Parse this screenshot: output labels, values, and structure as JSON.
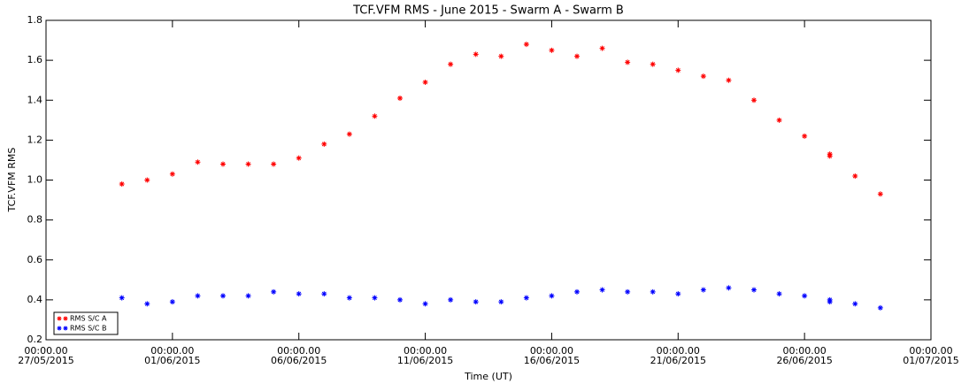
{
  "chart_data": {
    "type": "scatter",
    "title": "TCF.VFM RMS - June 2015 - Swarm A - Swarm B",
    "x_label": "Time (UT)",
    "y_label": "TCF.VFM RMS",
    "x": [
      "2015-05-30T00:00:00",
      "2015-05-31T00:00:00",
      "2015-06-01T00:00:00",
      "2015-06-02T00:00:00",
      "2015-06-03T00:00:00",
      "2015-06-04T00:00:00",
      "2015-06-05T00:00:00",
      "2015-06-06T00:00:00",
      "2015-06-07T00:00:00",
      "2015-06-08T00:00:00",
      "2015-06-09T00:00:00",
      "2015-06-10T00:00:00",
      "2015-06-11T00:00:00",
      "2015-06-12T00:00:00",
      "2015-06-13T00:00:00",
      "2015-06-14T00:00:00",
      "2015-06-15T00:00:00",
      "2015-06-16T00:00:00",
      "2015-06-17T00:00:00",
      "2015-06-18T00:00:00",
      "2015-06-19T00:00:00",
      "2015-06-20T00:00:00",
      "2015-06-21T00:00:00",
      "2015-06-22T00:00:00",
      "2015-06-23T00:00:00",
      "2015-06-24T00:00:00",
      "2015-06-25T00:00:00",
      "2015-06-26T00:00:00",
      "2015-06-27T00:00:00",
      "2015-06-27T00:00:00",
      "2015-06-28T00:00:00",
      "2015-06-29T00:00:00"
    ],
    "series": [
      {
        "name": "RMS S/C A",
        "color": "#ff0000",
        "values": [
          0.98,
          1.0,
          1.03,
          1.09,
          1.08,
          1.08,
          1.08,
          1.11,
          1.18,
          1.23,
          1.32,
          1.41,
          1.49,
          1.58,
          1.63,
          1.62,
          1.68,
          1.65,
          1.62,
          1.66,
          1.59,
          1.58,
          1.55,
          1.52,
          1.5,
          1.4,
          1.3,
          1.22,
          1.12,
          1.13,
          1.02,
          0.93
        ]
      },
      {
        "name": "RMS S/C B",
        "color": "#0000ff",
        "values": [
          0.41,
          0.38,
          0.39,
          0.42,
          0.42,
          0.42,
          0.44,
          0.43,
          0.43,
          0.41,
          0.41,
          0.4,
          0.38,
          0.4,
          0.39,
          0.39,
          0.41,
          0.42,
          0.44,
          0.45,
          0.44,
          0.44,
          0.43,
          0.45,
          0.46,
          0.45,
          0.43,
          0.42,
          0.4,
          0.39,
          0.38,
          0.36
        ]
      }
    ],
    "xlim": [
      "2015-05-27T00:00:00",
      "2015-07-01T00:00:00"
    ],
    "xticks": [
      {
        "value": "2015-05-27T00:00:00",
        "label": "00:00.00\n27/05/2015"
      },
      {
        "value": "2015-06-01T00:00:00",
        "label": "00:00.00\n01/06/2015"
      },
      {
        "value": "2015-06-06T00:00:00",
        "label": "00:00.00\n06/06/2015"
      },
      {
        "value": "2015-06-11T00:00:00",
        "label": "00:00.00\n11/06/2015"
      },
      {
        "value": "2015-06-16T00:00:00",
        "label": "00:00.00\n16/06/2015"
      },
      {
        "value": "2015-06-21T00:00:00",
        "label": "00:00.00\n21/06/2015"
      },
      {
        "value": "2015-06-26T00:00:00",
        "label": "00:00.00\n26/06/2015"
      },
      {
        "value": "2015-07-01T00:00:00",
        "label": "00:00.00\n01/07/2015"
      }
    ],
    "ylim": [
      0.2,
      1.8
    ],
    "yticks": [
      0.2,
      0.4,
      0.6,
      0.8,
      {
        "value": 1,
        "label": "1.0"
      },
      1.2,
      1.4,
      1.6,
      1.8
    ],
    "legend": "lower left"
  }
}
